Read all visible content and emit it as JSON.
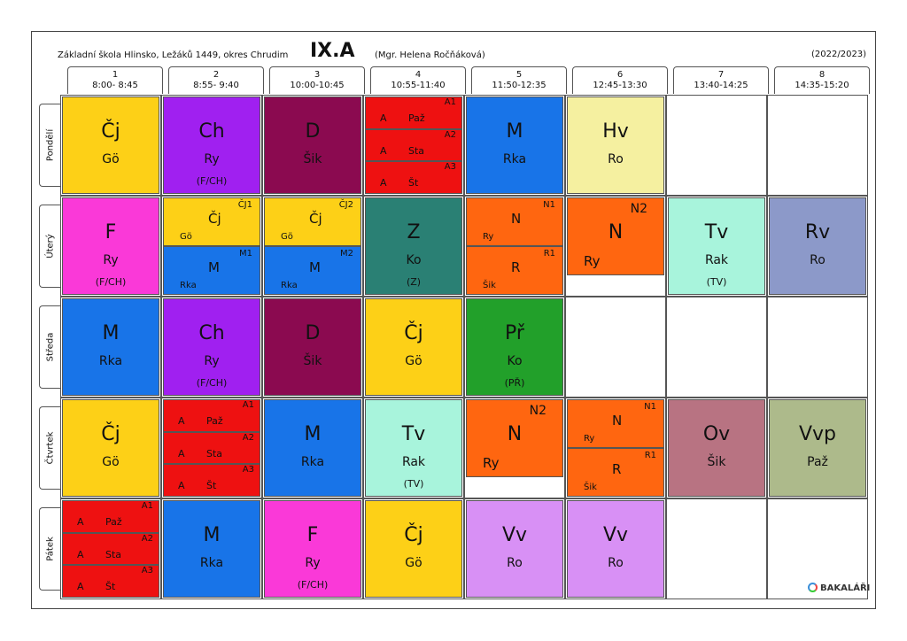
{
  "header": {
    "school": "Základní škola Hlinsko, Ležáků 1449, okres Chrudim",
    "class": "IX.A",
    "teacher": "(Mgr. Helena Ročňáková)",
    "year": "(2022/2023)"
  },
  "periods": [
    {
      "num": "1",
      "time": "8:00- 8:45"
    },
    {
      "num": "2",
      "time": "8:55- 9:40"
    },
    {
      "num": "3",
      "time": "10:00-10:45"
    },
    {
      "num": "4",
      "time": "10:55-11:40"
    },
    {
      "num": "5",
      "time": "11:50-12:35"
    },
    {
      "num": "6",
      "time": "12:45-13:30"
    },
    {
      "num": "7",
      "time": "13:40-14:25"
    },
    {
      "num": "8",
      "time": "14:35-15:20"
    }
  ],
  "days": [
    "Pondělí",
    "Úterý",
    "Středa",
    "Čtvrtek",
    "Pátek"
  ],
  "colors": {
    "Cj": "#fdd017",
    "Ch": "#a020f0",
    "D": "#8b0a50",
    "A": "#ee1111",
    "M": "#1874e8",
    "Hv": "#f5f0a0",
    "F": "#fa39d8",
    "N": "#ff6610",
    "Z": "#2a8074",
    "Tv": "#a8f4dc",
    "Rv": "#8c99c9",
    "Pr": "#22a02a",
    "Ov": "#b87382",
    "Vvp": "#adba8b",
    "Vv": "#d890f5"
  },
  "schedule": [
    [
      {
        "type": "single",
        "subject": "Čj",
        "teacher": "Gö",
        "color": "Cj"
      },
      {
        "type": "single",
        "subject": "Ch",
        "teacher": "Ry",
        "note": "(F/CH)",
        "color": "Ch"
      },
      {
        "type": "single",
        "subject": "D",
        "teacher": "Šik",
        "color": "D"
      },
      {
        "type": "triple",
        "color": "A",
        "parts": [
          {
            "group": "A1",
            "subject": "A",
            "teacher": "Paž"
          },
          {
            "group": "A2",
            "subject": "A",
            "teacher": "Sta"
          },
          {
            "group": "A3",
            "subject": "A",
            "teacher": "Št"
          }
        ]
      },
      {
        "type": "single",
        "subject": "M",
        "teacher": "Rka",
        "color": "M"
      },
      {
        "type": "single",
        "subject": "Hv",
        "teacher": "Ro",
        "color": "Hv"
      },
      {
        "type": "empty"
      },
      {
        "type": "empty"
      }
    ],
    [
      {
        "type": "single",
        "subject": "F",
        "teacher": "Ry",
        "note": "(F/CH)",
        "color": "F"
      },
      {
        "type": "double",
        "parts": [
          {
            "group": "ČJ1",
            "subject": "Čj",
            "teacher": "Gö",
            "color": "Cj"
          },
          {
            "group": "M1",
            "subject": "M",
            "teacher": "Rka",
            "color": "M"
          }
        ]
      },
      {
        "type": "double",
        "parts": [
          {
            "group": "ČJ2",
            "subject": "Čj",
            "teacher": "Gö",
            "color": "Cj"
          },
          {
            "group": "M2",
            "subject": "M",
            "teacher": "Rka",
            "color": "M"
          }
        ]
      },
      {
        "type": "single",
        "subject": "Z",
        "teacher": "Ko",
        "note": "(Z)",
        "color": "Z"
      },
      {
        "type": "double",
        "parts": [
          {
            "group": "N1",
            "subject": "N",
            "teacher": "Ry",
            "color": "N"
          },
          {
            "group": "R1",
            "subject": "R",
            "teacher": "Šik",
            "color": "N"
          }
        ]
      },
      {
        "type": "group",
        "group": "N2",
        "subject": "N",
        "teacher": "Ry",
        "color": "N"
      },
      {
        "type": "single",
        "subject": "Tv",
        "teacher": "Rak",
        "note": "(TV)",
        "color": "Tv"
      },
      {
        "type": "single",
        "subject": "Rv",
        "teacher": "Ro",
        "color": "Rv"
      }
    ],
    [
      {
        "type": "single",
        "subject": "M",
        "teacher": "Rka",
        "color": "M"
      },
      {
        "type": "single",
        "subject": "Ch",
        "teacher": "Ry",
        "note": "(F/CH)",
        "color": "Ch"
      },
      {
        "type": "single",
        "subject": "D",
        "teacher": "Šik",
        "color": "D"
      },
      {
        "type": "single",
        "subject": "Čj",
        "teacher": "Gö",
        "color": "Cj"
      },
      {
        "type": "single",
        "subject": "Př",
        "teacher": "Ko",
        "note": "(PŘ)",
        "color": "Pr"
      },
      {
        "type": "empty"
      },
      {
        "type": "empty"
      },
      {
        "type": "empty"
      }
    ],
    [
      {
        "type": "single",
        "subject": "Čj",
        "teacher": "Gö",
        "color": "Cj"
      },
      {
        "type": "triple",
        "color": "A",
        "parts": [
          {
            "group": "A1",
            "subject": "A",
            "teacher": "Paž"
          },
          {
            "group": "A2",
            "subject": "A",
            "teacher": "Sta"
          },
          {
            "group": "A3",
            "subject": "A",
            "teacher": "Št"
          }
        ]
      },
      {
        "type": "single",
        "subject": "M",
        "teacher": "Rka",
        "color": "M"
      },
      {
        "type": "single",
        "subject": "Tv",
        "teacher": "Rak",
        "note": "(TV)",
        "color": "Tv"
      },
      {
        "type": "group",
        "group": "N2",
        "subject": "N",
        "teacher": "Ry",
        "color": "N"
      },
      {
        "type": "double",
        "parts": [
          {
            "group": "N1",
            "subject": "N",
            "teacher": "Ry",
            "color": "N"
          },
          {
            "group": "R1",
            "subject": "R",
            "teacher": "Šik",
            "color": "N"
          }
        ]
      },
      {
        "type": "single",
        "subject": "Ov",
        "teacher": "Šik",
        "color": "Ov"
      },
      {
        "type": "single",
        "subject": "Vvp",
        "teacher": "Paž",
        "color": "Vvp"
      }
    ],
    [
      {
        "type": "triple",
        "color": "A",
        "parts": [
          {
            "group": "A1",
            "subject": "A",
            "teacher": "Paž"
          },
          {
            "group": "A2",
            "subject": "A",
            "teacher": "Sta"
          },
          {
            "group": "A3",
            "subject": "A",
            "teacher": "Št"
          }
        ]
      },
      {
        "type": "single",
        "subject": "M",
        "teacher": "Rka",
        "color": "M"
      },
      {
        "type": "single",
        "subject": "F",
        "teacher": "Ry",
        "note": "(F/CH)",
        "color": "F"
      },
      {
        "type": "single",
        "subject": "Čj",
        "teacher": "Gö",
        "color": "Cj"
      },
      {
        "type": "single",
        "subject": "Vv",
        "teacher": "Ro",
        "color": "Vv"
      },
      {
        "type": "single",
        "subject": "Vv",
        "teacher": "Ro",
        "color": "Vv"
      },
      {
        "type": "empty"
      },
      {
        "type": "empty"
      }
    ]
  ],
  "footer": {
    "logo": "BAKALÁŘI"
  }
}
